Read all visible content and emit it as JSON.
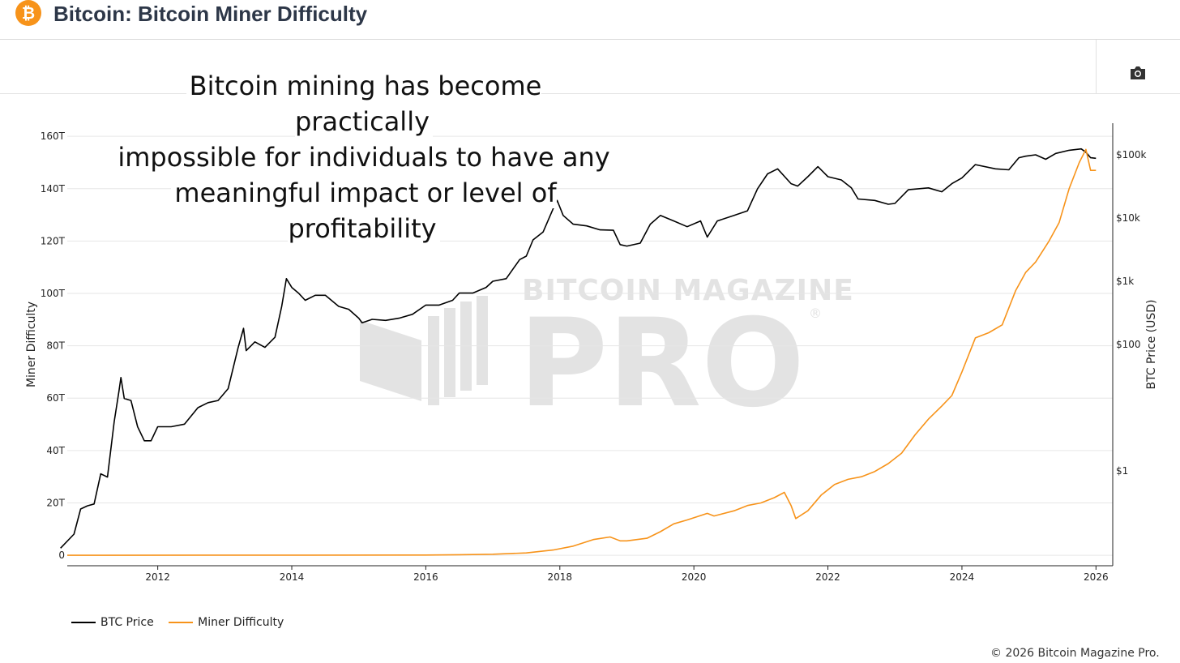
{
  "header": {
    "title": "Bitcoin: Bitcoin Miner Difficulty",
    "logo_glyph": "₿"
  },
  "caption": {
    "lines": [
      "Bitcoin mining has become practically",
      "impossible for individuals to have any",
      "meaningful impact or level of profitability"
    ]
  },
  "watermark": {
    "top": "BITCOIN MAGAZINE",
    "big": "PRO",
    "mark": "®"
  },
  "legend": [
    {
      "label": "BTC Price",
      "color": "#000000"
    },
    {
      "label": "Miner Difficulty",
      "color": "#f7931a"
    }
  ],
  "copyright": "© 2026 Bitcoin Magazine Pro.",
  "chart_data": {
    "type": "line",
    "title": "Bitcoin: Bitcoin Miner Difficulty",
    "xlabel": "",
    "ylabel": "Miner Difficulty",
    "y2label": "BTC Price (USD)",
    "x_ticks": [
      "2012",
      "2014",
      "2016",
      "2018",
      "2020",
      "2022",
      "2024",
      "2026"
    ],
    "xlim": [
      2010.65,
      2026.25
    ],
    "y_ticks": [
      "0",
      "20T",
      "40T",
      "60T",
      "80T",
      "100T",
      "120T",
      "140T",
      "160T"
    ],
    "ylim_T": [
      -4,
      165
    ],
    "y2_ticks": [
      "$1",
      "$100",
      "$1k",
      "$10k",
      "$100k"
    ],
    "y2_tick_values": [
      1,
      100,
      1000,
      10000,
      100000
    ],
    "y2lim_log10": [
      -1.5,
      5.5
    ],
    "series": [
      {
        "name": "BTC Price",
        "color": "#000000",
        "axis": "right-log",
        "points": [
          [
            2010.55,
            0.06
          ],
          [
            2010.75,
            0.1
          ],
          [
            2010.85,
            0.25
          ],
          [
            2010.95,
            0.28
          ],
          [
            2011.05,
            0.3
          ],
          [
            2011.15,
            0.9
          ],
          [
            2011.25,
            0.8
          ],
          [
            2011.35,
            6
          ],
          [
            2011.42,
            18
          ],
          [
            2011.45,
            30
          ],
          [
            2011.5,
            14
          ],
          [
            2011.6,
            13
          ],
          [
            2011.7,
            5
          ],
          [
            2011.8,
            3
          ],
          [
            2011.9,
            3
          ],
          [
            2012.0,
            5
          ],
          [
            2012.2,
            5
          ],
          [
            2012.4,
            5.5
          ],
          [
            2012.6,
            10
          ],
          [
            2012.75,
            12
          ],
          [
            2012.9,
            13
          ],
          [
            2013.05,
            20
          ],
          [
            2013.2,
            90
          ],
          [
            2013.28,
            180
          ],
          [
            2013.32,
            80
          ],
          [
            2013.45,
            110
          ],
          [
            2013.6,
            90
          ],
          [
            2013.75,
            130
          ],
          [
            2013.85,
            400
          ],
          [
            2013.92,
            1100
          ],
          [
            2014.0,
            800
          ],
          [
            2014.1,
            650
          ],
          [
            2014.2,
            500
          ],
          [
            2014.35,
            600
          ],
          [
            2014.5,
            600
          ],
          [
            2014.7,
            400
          ],
          [
            2014.85,
            360
          ],
          [
            2015.0,
            260
          ],
          [
            2015.05,
            220
          ],
          [
            2015.2,
            250
          ],
          [
            2015.4,
            240
          ],
          [
            2015.6,
            260
          ],
          [
            2015.8,
            300
          ],
          [
            2016.0,
            420
          ],
          [
            2016.2,
            420
          ],
          [
            2016.4,
            500
          ],
          [
            2016.5,
            650
          ],
          [
            2016.7,
            650
          ],
          [
            2016.9,
            800
          ],
          [
            2017.0,
            1000
          ],
          [
            2017.2,
            1100
          ],
          [
            2017.4,
            2200
          ],
          [
            2017.5,
            2500
          ],
          [
            2017.6,
            4500
          ],
          [
            2017.75,
            6000
          ],
          [
            2017.9,
            14000
          ],
          [
            2017.96,
            19000
          ],
          [
            2018.05,
            11000
          ],
          [
            2018.2,
            8000
          ],
          [
            2018.4,
            7500
          ],
          [
            2018.6,
            6500
          ],
          [
            2018.8,
            6400
          ],
          [
            2018.9,
            3800
          ],
          [
            2019.0,
            3600
          ],
          [
            2019.2,
            4000
          ],
          [
            2019.35,
            8000
          ],
          [
            2019.5,
            11000
          ],
          [
            2019.7,
            9000
          ],
          [
            2019.9,
            7300
          ],
          [
            2020.1,
            9000
          ],
          [
            2020.2,
            5000
          ],
          [
            2020.35,
            9000
          ],
          [
            2020.6,
            11000
          ],
          [
            2020.8,
            13000
          ],
          [
            2020.95,
            29000
          ],
          [
            2021.1,
            50000
          ],
          [
            2021.25,
            60000
          ],
          [
            2021.45,
            35000
          ],
          [
            2021.55,
            32000
          ],
          [
            2021.7,
            45000
          ],
          [
            2021.85,
            65000
          ],
          [
            2022.0,
            45000
          ],
          [
            2022.2,
            40000
          ],
          [
            2022.35,
            30000
          ],
          [
            2022.45,
            20000
          ],
          [
            2022.7,
            19000
          ],
          [
            2022.9,
            16500
          ],
          [
            2023.0,
            17000
          ],
          [
            2023.2,
            28000
          ],
          [
            2023.5,
            30000
          ],
          [
            2023.7,
            26000
          ],
          [
            2023.85,
            35000
          ],
          [
            2024.0,
            43000
          ],
          [
            2024.2,
            70000
          ],
          [
            2024.5,
            60000
          ],
          [
            2024.7,
            58000
          ],
          [
            2024.85,
            90000
          ],
          [
            2024.95,
            95000
          ],
          [
            2025.1,
            100000
          ],
          [
            2025.25,
            85000
          ],
          [
            2025.4,
            105000
          ],
          [
            2025.6,
            118000
          ],
          [
            2025.78,
            124000
          ],
          [
            2025.85,
            110000
          ],
          [
            2025.92,
            90000
          ],
          [
            2026.0,
            88000
          ]
        ]
      },
      {
        "name": "Miner Difficulty",
        "color": "#f7931a",
        "axis": "left",
        "points": [
          [
            2010.65,
            0
          ],
          [
            2016.0,
            0.1
          ],
          [
            2016.5,
            0.2
          ],
          [
            2017.0,
            0.4
          ],
          [
            2017.5,
            0.9
          ],
          [
            2017.9,
            2
          ],
          [
            2018.2,
            3.5
          ],
          [
            2018.5,
            6
          ],
          [
            2018.75,
            7
          ],
          [
            2018.9,
            5.5
          ],
          [
            2019.0,
            5.5
          ],
          [
            2019.3,
            6.5
          ],
          [
            2019.5,
            9
          ],
          [
            2019.7,
            12
          ],
          [
            2019.9,
            13.5
          ],
          [
            2020.2,
            16
          ],
          [
            2020.3,
            15
          ],
          [
            2020.6,
            17
          ],
          [
            2020.8,
            19
          ],
          [
            2021.0,
            20
          ],
          [
            2021.2,
            22
          ],
          [
            2021.35,
            24
          ],
          [
            2021.45,
            19
          ],
          [
            2021.52,
            14
          ],
          [
            2021.7,
            17
          ],
          [
            2021.9,
            23
          ],
          [
            2022.1,
            27
          ],
          [
            2022.3,
            29
          ],
          [
            2022.5,
            30
          ],
          [
            2022.7,
            32
          ],
          [
            2022.9,
            35
          ],
          [
            2023.1,
            39
          ],
          [
            2023.3,
            46
          ],
          [
            2023.5,
            52
          ],
          [
            2023.7,
            57
          ],
          [
            2023.85,
            61
          ],
          [
            2024.0,
            70
          ],
          [
            2024.2,
            83
          ],
          [
            2024.4,
            85
          ],
          [
            2024.6,
            88
          ],
          [
            2024.8,
            101
          ],
          [
            2024.95,
            108
          ],
          [
            2025.1,
            112
          ],
          [
            2025.3,
            120
          ],
          [
            2025.45,
            127
          ],
          [
            2025.6,
            140
          ],
          [
            2025.75,
            150
          ],
          [
            2025.85,
            155
          ],
          [
            2025.92,
            147
          ],
          [
            2026.0,
            147
          ]
        ]
      }
    ]
  }
}
